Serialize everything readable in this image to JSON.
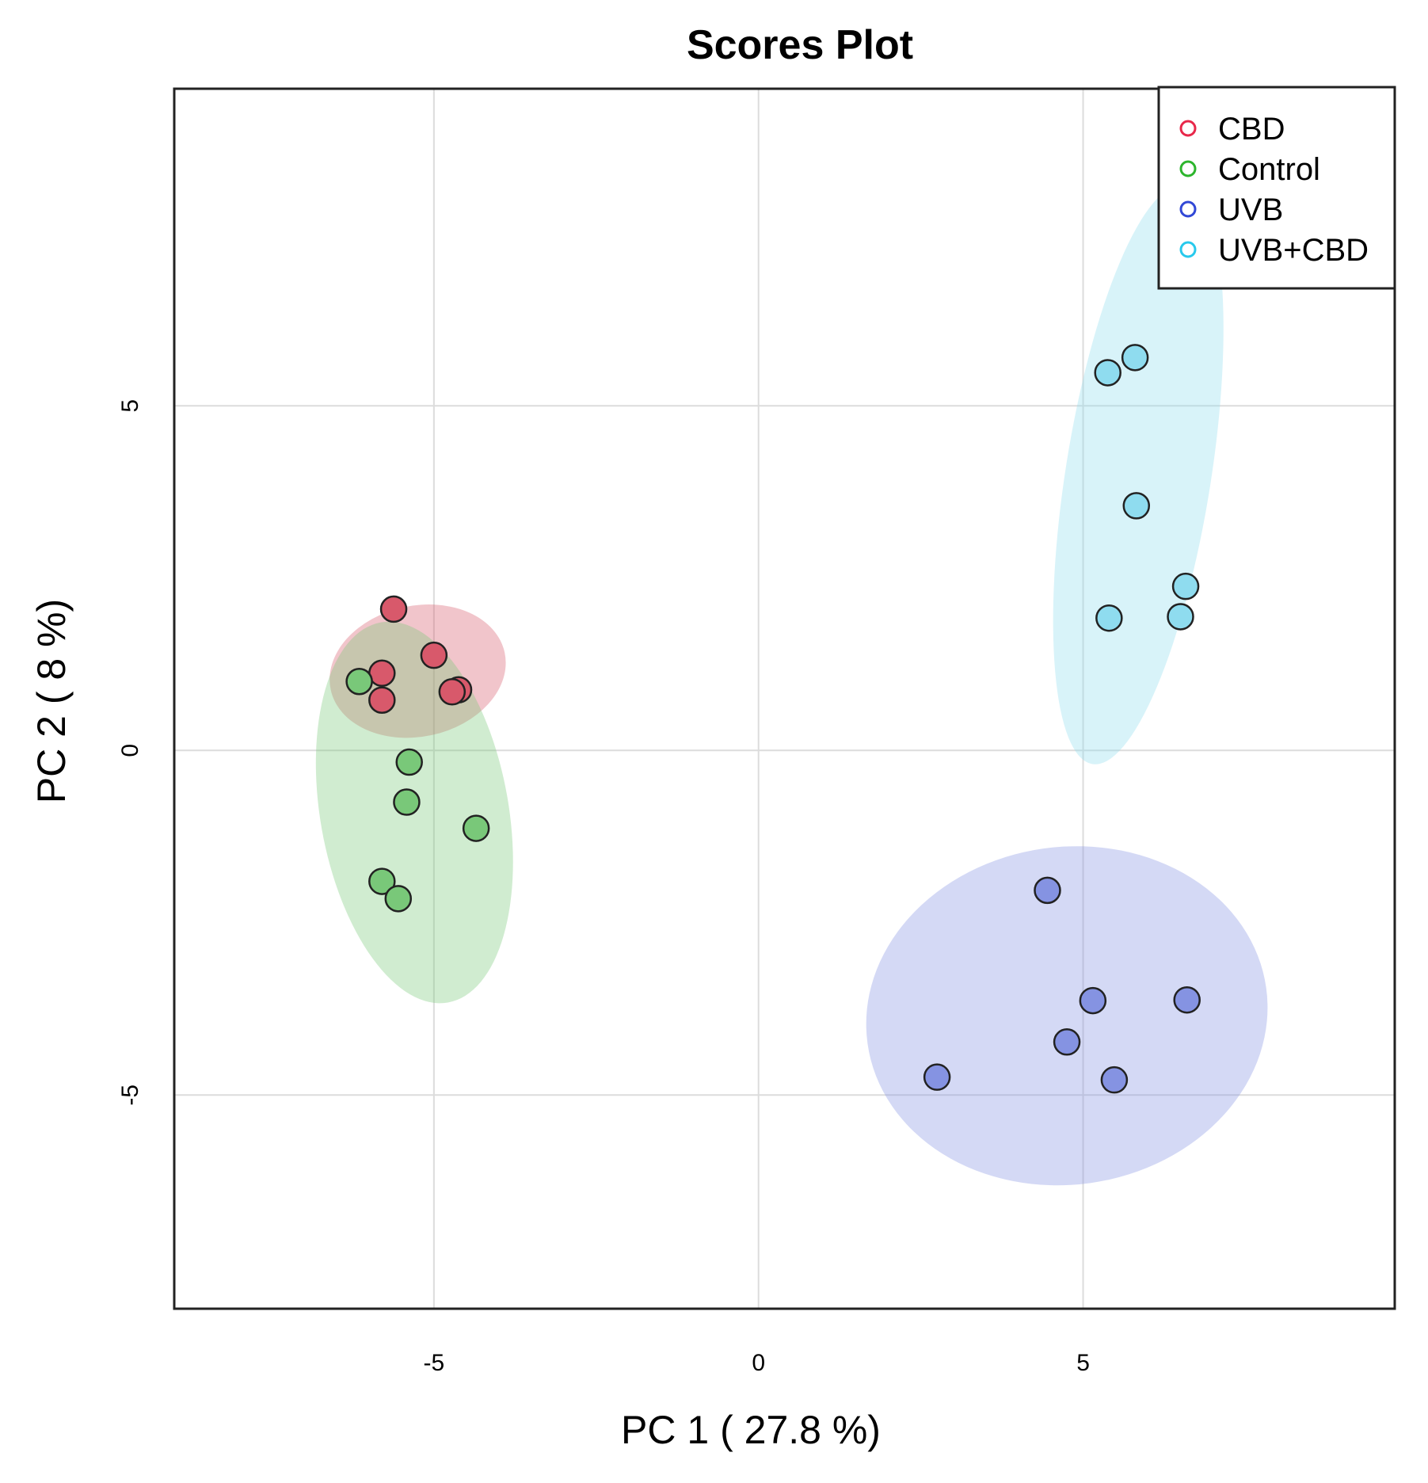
{
  "chart_data": {
    "type": "scatter",
    "title": "Scores Plot",
    "xlabel": "PC 1 ( 27.8 %)",
    "ylabel": "PC 2 ( 8 %)",
    "xlim": [
      -9.0,
      9.8
    ],
    "ylim": [
      -8.1,
      9.6
    ],
    "xticks": [
      -5,
      0,
      5
    ],
    "yticks": [
      -5,
      0,
      5
    ],
    "grid": true,
    "legend_position": "top-right",
    "series": [
      {
        "name": "CBD",
        "color": "#e8284a",
        "fill": "#d8596b",
        "ellipse": {
          "cx": -5.25,
          "cy": 1.15,
          "rx": 1.37,
          "ry": 0.95,
          "angle": -12
        },
        "points": [
          [
            -5.62,
            2.05
          ],
          [
            -5.0,
            1.38
          ],
          [
            -4.62,
            0.88
          ],
          [
            -4.72,
            0.85
          ],
          [
            -5.8,
            1.12
          ],
          [
            -5.8,
            0.73
          ]
        ]
      },
      {
        "name": "Control",
        "color": "#2db52d",
        "fill": "#79c879",
        "ellipse": {
          "cx": -5.3,
          "cy": -0.9,
          "rx": 1.45,
          "ry": 2.8,
          "angle": -10
        },
        "points": [
          [
            -6.15,
            1.0
          ],
          [
            -5.38,
            -0.17
          ],
          [
            -5.42,
            -0.75
          ],
          [
            -4.35,
            -1.13
          ],
          [
            -5.8,
            -1.9
          ],
          [
            -5.55,
            -2.15
          ]
        ]
      },
      {
        "name": "UVB",
        "color": "#3148d6",
        "fill": "#8593e2",
        "ellipse": {
          "cx": 4.75,
          "cy": -3.85,
          "rx": 3.1,
          "ry": 2.45,
          "angle": -8
        },
        "points": [
          [
            4.45,
            -2.03
          ],
          [
            5.15,
            -3.63
          ],
          [
            6.6,
            -3.62
          ],
          [
            4.75,
            -4.23
          ],
          [
            2.75,
            -4.74
          ],
          [
            5.48,
            -4.78
          ]
        ]
      },
      {
        "name": "UVB+CBD",
        "color": "#28c9ec",
        "fill": "#8fdcef",
        "ellipse": {
          "cx": 5.85,
          "cy": 4.0,
          "rx": 1.12,
          "ry": 4.25,
          "angle": 9
        },
        "points": [
          [
            5.38,
            5.48
          ],
          [
            5.8,
            5.7
          ],
          [
            5.82,
            3.55
          ],
          [
            6.58,
            2.38
          ],
          [
            5.4,
            1.92
          ],
          [
            6.5,
            1.94
          ]
        ]
      }
    ]
  }
}
